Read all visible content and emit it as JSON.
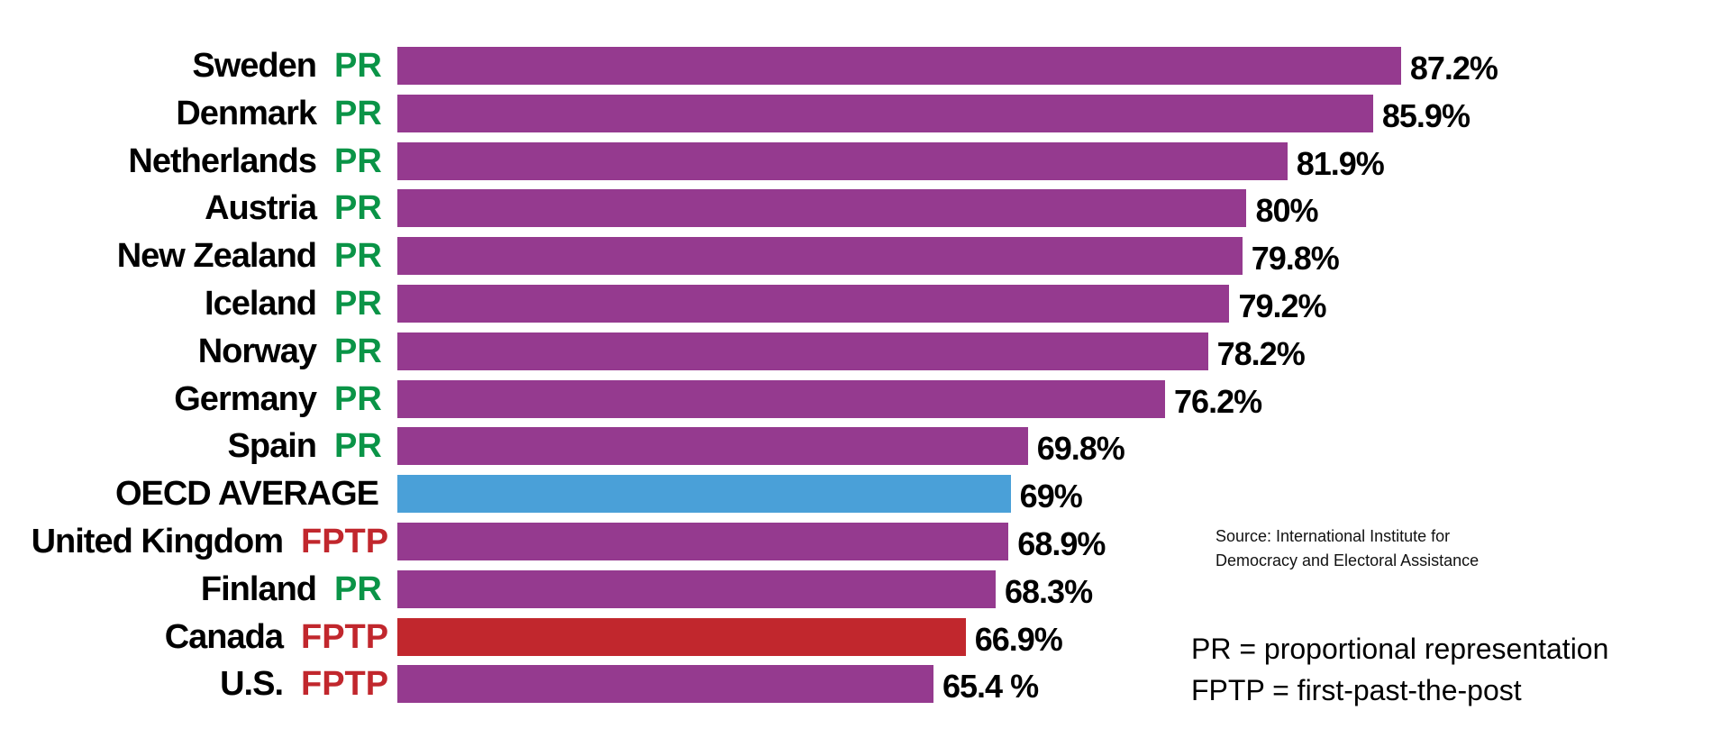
{
  "chart_data": {
    "type": "bar",
    "orientation": "horizontal",
    "categories": [
      "Sweden",
      "Denmark",
      "Netherlands",
      "Austria",
      "New Zealand",
      "Iceland",
      "Norway",
      "Germany",
      "Spain",
      "OECD AVERAGE",
      "United Kingdom",
      "Finland",
      "Canada",
      "U.S."
    ],
    "systems": [
      "PR",
      "PR",
      "PR",
      "PR",
      "PR",
      "PR",
      "PR",
      "PR",
      "PR",
      "",
      "FPTP",
      "PR",
      "FPTP",
      "FPTP"
    ],
    "values": [
      87.2,
      85.9,
      81.9,
      80,
      79.8,
      79.2,
      78.2,
      76.2,
      69.8,
      69,
      68.9,
      68.3,
      66.9,
      65.4
    ],
    "value_labels": [
      "87.2%",
      "85.9%",
      "81.9%",
      "80%",
      "79.8%",
      "79.2%",
      "78.2%",
      "76.2%",
      "69.8%",
      "69%",
      "68.9%",
      "68.3%",
      "66.9%",
      "65.4 %"
    ],
    "bar_colors": [
      "#953a8f",
      "#953a8f",
      "#953a8f",
      "#953a8f",
      "#953a8f",
      "#953a8f",
      "#953a8f",
      "#953a8f",
      "#953a8f",
      "#4aa0d8",
      "#953a8f",
      "#953a8f",
      "#c1272d",
      "#953a8f"
    ],
    "system_colors": {
      "PR": "#0a9447",
      "FPTP": "#c1272d"
    },
    "title": "",
    "xlabel": "",
    "ylabel": "",
    "grid": false
  },
  "source": {
    "line1": "Source: International Institute for",
    "line2": "Democracy and Electoral Assistance"
  },
  "legend": {
    "pr": "PR = proportional representation",
    "fptp": "FPTP = first-past-the-post"
  }
}
